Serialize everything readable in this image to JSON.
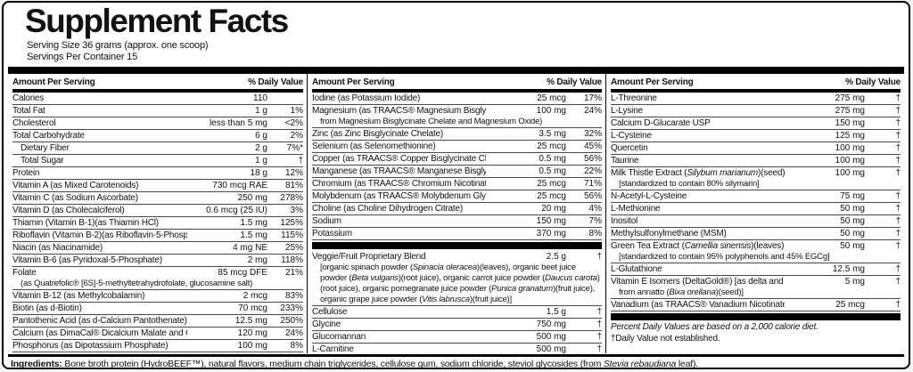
{
  "title": "Supplement Facts",
  "serving_size": "Serving Size 36 grams (approx. one scoop)",
  "servings_per_container": "Servings Per Container 15",
  "column_header": {
    "left": "Amount Per Serving",
    "right": "% Daily Value"
  },
  "columns": [
    {
      "rows": [
        {
          "name": "Calories",
          "amount": "110",
          "dv": ""
        },
        {
          "name": "Total Fat",
          "amount": "1 g",
          "dv": "1%"
        },
        {
          "name": "Cholesterol",
          "amount": "less than 5 mg",
          "dv": "<2%"
        },
        {
          "name": "Total Carbohydrate",
          "amount": "6 g",
          "dv": "2%"
        },
        {
          "name": "Dietary Fiber",
          "amount": "2 g",
          "dv": "7%*",
          "indent": true
        },
        {
          "name": "Total Sugar",
          "amount": "1 g",
          "dv": "†",
          "indent": true
        },
        {
          "name": "Protein",
          "amount": "18 g",
          "dv": "12%"
        },
        {
          "name": "Vitamin A (as Mixed Carotenoids)",
          "amount": "730 mcg RAE",
          "dv": "81%"
        },
        {
          "name": "Vitamin C (as Sodium Ascorbate)",
          "amount": "250 mg",
          "dv": "278%"
        },
        {
          "name": "Vitamin D (as Cholecalciferol)",
          "amount": "0.6 mcg (25 IU)",
          "dv": "3%"
        },
        {
          "name": "Thiamin (Vitamin B-1)(as Thiamin HCl)",
          "amount": "1.5 mg",
          "dv": "125%"
        },
        {
          "name": "Riboflavin (Vitamin B-2)(as Riboflavin-5-Phosphate)",
          "amount": "1.5 mg",
          "dv": "115%"
        },
        {
          "name": "Niacin (as Niacinamide)",
          "amount": "4 mg NE",
          "dv": "25%"
        },
        {
          "name": "Vitamin B-6 (as Pyridoxal-5-Phosphate)",
          "amount": "2 mg",
          "dv": "118%"
        },
        {
          "name": "Folate",
          "sub": "(as Quatrefolic® [6S]-5-methyltetrahydrofolate, glucosamine salt)",
          "amount": "85 mcg DFE",
          "dv": "21%"
        },
        {
          "name": "Vitamin B-12 (as Methylcobalamin)",
          "amount": "2 mcg",
          "dv": "83%"
        },
        {
          "name": "Biotin (as d-Biotin)",
          "amount": "70 mcg",
          "dv": "233%"
        },
        {
          "name": "Pantothenic Acid (as d-Calcium Pantothenate)",
          "amount": "12.5 mg",
          "dv": "250%"
        },
        {
          "name": "Calcium (as DimaCal® Dicalcium Malate and Calcium D-Glucarate USP)",
          "amount": "120 mg",
          "dv": "24%"
        },
        {
          "name": "Phosphorus (as Dipotassium Phosphate)",
          "amount": "100 mg",
          "dv": "8%"
        }
      ]
    },
    {
      "rows": [
        {
          "name": "Iodine (as Potassium Iodide)",
          "amount": "25 mcg",
          "dv": "17%"
        },
        {
          "name": "Magnesium (as TRAACS® Magnesium Bisglycinate Chelate Buffered",
          "sub": "from Magnesium Bisglycinate Chelate and Magnesium Oxide)",
          "amount": "100 mg",
          "dv": "24%"
        },
        {
          "name": "Zinc (as Zinc Bisglycinate Chelate)",
          "amount": "3.5 mg",
          "dv": "32%"
        },
        {
          "name": "Selenium (as Selenomethionine)",
          "amount": "25 mcg",
          "dv": "45%"
        },
        {
          "name": "Copper (as TRAACS® Copper Bisglycinate Chelate)",
          "amount": "0.5 mg",
          "dv": "56%"
        },
        {
          "name": "Manganese (as TRAACS® Manganese Bisglycinate Chelate)",
          "amount": "0.5 mg",
          "dv": "22%"
        },
        {
          "name": "Chromium (as TRAACS® Chromium Nicotinate Glycinate Chelate)",
          "amount": "25 mcg",
          "dv": "71%"
        },
        {
          "name": "Molybdenum (as TRAACS® Molybdenum Glycinate Chelate)",
          "amount": "25 mcg",
          "dv": "56%"
        },
        {
          "name": "Choline (as Choline Dihydrogen Citrate)",
          "amount": "20 mg",
          "dv": "4%"
        },
        {
          "name": "Sodium",
          "amount": "150 mg",
          "dv": "7%"
        },
        {
          "name": "Potassium",
          "amount": "370 mg",
          "dv": "8%"
        },
        {
          "bar": true
        },
        {
          "name": "Veggie/Fruit Proprietary Blend",
          "sub": "[organic spinach powder (*Spinacia oleracea*)(leaves), organic beet juice powder (*Beta vulgaris*)(root juice), organic carrot juice powder (*Daucus carota*)(root juice), organic pomegranate juice powder (*Punica granatum*)(fruit juice), organic grape juice powder (*Vitis labrusca*)(fruit juice)]",
          "amount": "2.5 g",
          "dv": "†",
          "wrap_sub": true
        },
        {
          "name": "Cellulose",
          "amount": "1.5 g",
          "dv": "†"
        },
        {
          "name": "Glycine",
          "amount": "750 mg",
          "dv": "†"
        },
        {
          "name": "Glucomannan",
          "amount": "500 mg",
          "dv": "†"
        },
        {
          "name": "L-Carnitine",
          "amount": "500 mg",
          "dv": "†"
        }
      ]
    },
    {
      "rows": [
        {
          "name": "L-Threonine",
          "amount": "275 mg",
          "dv": "†"
        },
        {
          "name": "L-Lysine",
          "amount": "275 mg",
          "dv": "†"
        },
        {
          "name": "Calcium D-Glucarate USP",
          "amount": "150 mg",
          "dv": "†"
        },
        {
          "name": "L-Cysteine",
          "amount": "125 mg",
          "dv": "†"
        },
        {
          "name": "Quercetin",
          "amount": "100 mg",
          "dv": "†"
        },
        {
          "name": "Taurine",
          "amount": "100 mg",
          "dv": "†"
        },
        {
          "name": "Milk Thistle Extract (*Silybum marianum*)(seed)",
          "sub": "[standardized to contain 80% silymarin]",
          "amount": "100 mg",
          "dv": "†"
        },
        {
          "name": "N-Acetyl-L-Cysteine",
          "amount": "75 mg",
          "dv": "†"
        },
        {
          "name": "L-Methionine",
          "amount": "50 mg",
          "dv": "†"
        },
        {
          "name": "Inositol",
          "amount": "50 mg",
          "dv": "†"
        },
        {
          "name": "Methylsulfonylmethane (MSM)",
          "amount": "50 mg",
          "dv": "†"
        },
        {
          "name": "Green Tea Extract (*Camellia sinensis*)(leaves)",
          "sub": "[standardized to contain 95% polyphenols and 45% EGCg]",
          "amount": "50 mg",
          "dv": "†"
        },
        {
          "name": "L-Glutathione",
          "amount": "12.5 mg",
          "dv": "†"
        },
        {
          "name": "Vitamin E Isomers (DeltaGold®) [as delta and gamma tocotrienols",
          "sub": "from annatto (*Bixa orellana*)(seed)]",
          "amount": "5 mg",
          "dv": "†"
        },
        {
          "name": "Vanadium (as TRAACS® Vanadium Nicotinate Glycinate Chelate)",
          "amount": "25 mcg",
          "dv": "†"
        },
        {
          "bar": true
        },
        {
          "note": "*Percent Daily Values are based on a 2,000 calorie diet."
        },
        {
          "note": "†Daily Value not established."
        }
      ]
    }
  ],
  "ingredients": {
    "label": "Ingredients:",
    "text": " Bone broth protein (HydroBEEF™), natural flavors, medium chain triglycerides, cellulose gum, sodium chloride, steviol glycosides (from *Stevia rebaudiana* leaf)."
  }
}
